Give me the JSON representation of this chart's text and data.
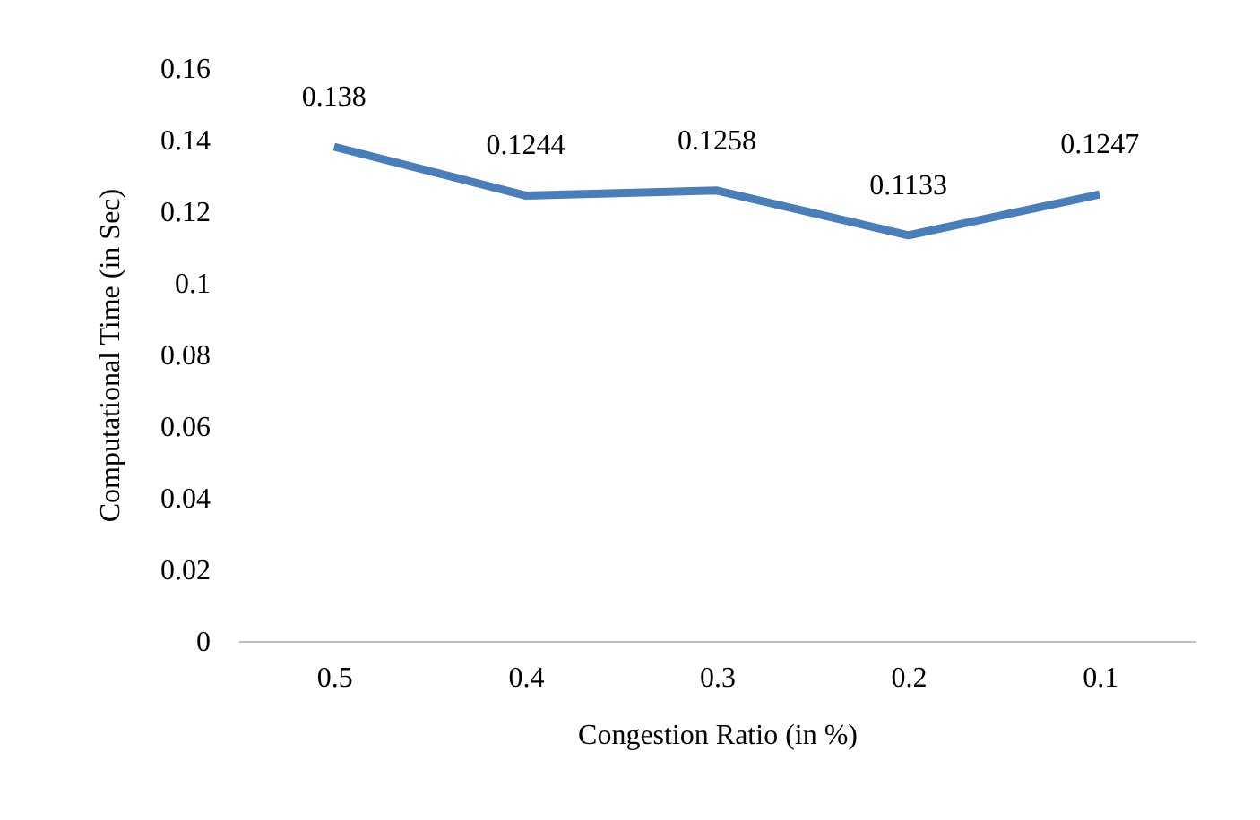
{
  "chart_data": {
    "type": "line",
    "xlabel": "Congestion Ratio (in %)",
    "ylabel": "Computational Time  (in Sec)",
    "categories": [
      "0.5",
      "0.4",
      "0.3",
      "0.2",
      "0.1"
    ],
    "series": [
      {
        "color": "#4a7ebb",
        "values": [
          0.138,
          0.1244,
          0.1258,
          0.1133,
          0.1247
        ]
      }
    ],
    "ylim": [
      0,
      0.16
    ],
    "yticks": [
      0,
      0.02,
      0.04,
      0.06,
      0.08,
      0.1,
      0.12,
      0.14,
      0.16
    ],
    "data_labels": true,
    "grid": false,
    "legend": false,
    "marker": "none",
    "line_style": "solid"
  }
}
